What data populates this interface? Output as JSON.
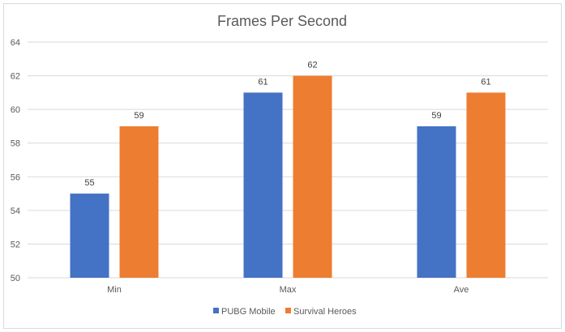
{
  "chart_data": {
    "type": "bar",
    "title": "Frames Per Second",
    "xlabel": "",
    "ylabel": "",
    "categories": [
      "Min",
      "Max",
      "Ave"
    ],
    "series": [
      {
        "name": "PUBG Mobile",
        "values": [
          55,
          61,
          59
        ],
        "color": "#4472C4"
      },
      {
        "name": "Survival Heroes",
        "values": [
          59,
          62,
          61
        ],
        "color": "#ED7D31"
      }
    ],
    "ylim": [
      50,
      64
    ],
    "yticks": [
      50,
      52,
      54,
      56,
      58,
      60,
      62,
      64
    ],
    "grid": true,
    "legend": "bottom",
    "data_labels": true
  }
}
